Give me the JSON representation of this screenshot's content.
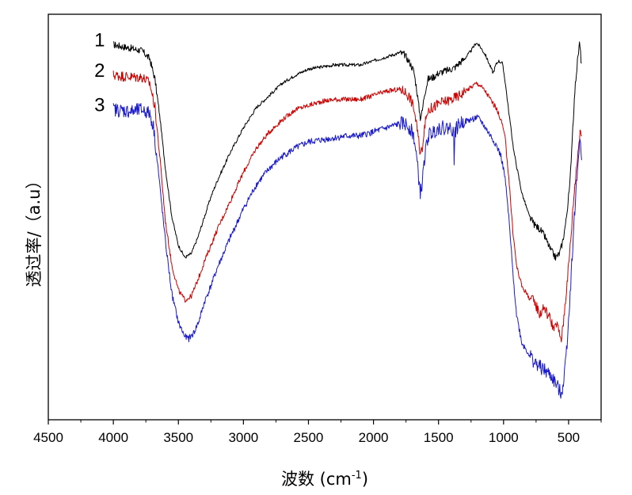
{
  "chart_data": {
    "type": "line",
    "title": "",
    "xlabel": "波数 (cm",
    "xlabel_sup": "-1",
    "xlabel_close": ")",
    "ylabel": "透过率/（a.u）",
    "xlim": [
      4500,
      250
    ],
    "ylim": [
      0,
      1
    ],
    "x_reversed": true,
    "x_ticks": [
      4500,
      4000,
      3500,
      3000,
      2500,
      2000,
      1500,
      1000,
      500
    ],
    "x_tick_labels": [
      "4500",
      "4000",
      "3500",
      "3000",
      "2500",
      "2000",
      "1500",
      "1000",
      "500"
    ],
    "grid": false,
    "legend": "none",
    "series": [
      {
        "name": "1",
        "color": "#000000",
        "noise": 0.004,
        "points": [
          [
            4000,
            0.925
          ],
          [
            3850,
            0.915
          ],
          [
            3780,
            0.91
          ],
          [
            3720,
            0.89
          ],
          [
            3680,
            0.84
          ],
          [
            3640,
            0.74
          ],
          [
            3600,
            0.62
          ],
          [
            3550,
            0.5
          ],
          [
            3500,
            0.43
          ],
          [
            3450,
            0.4
          ],
          [
            3400,
            0.41
          ],
          [
            3350,
            0.45
          ],
          [
            3300,
            0.5
          ],
          [
            3250,
            0.55
          ],
          [
            3200,
            0.59
          ],
          [
            3100,
            0.66
          ],
          [
            3000,
            0.72
          ],
          [
            2900,
            0.77
          ],
          [
            2800,
            0.8
          ],
          [
            2700,
            0.83
          ],
          [
            2600,
            0.85
          ],
          [
            2500,
            0.865
          ],
          [
            2400,
            0.87
          ],
          [
            2300,
            0.875
          ],
          [
            2200,
            0.875
          ],
          [
            2100,
            0.875
          ],
          [
            2000,
            0.885
          ],
          [
            1900,
            0.895
          ],
          [
            1800,
            0.905
          ],
          [
            1760,
            0.9
          ],
          [
            1720,
            0.88
          ],
          [
            1690,
            0.86
          ],
          [
            1670,
            0.82
          ],
          [
            1650,
            0.77
          ],
          [
            1640,
            0.745
          ],
          [
            1625,
            0.76
          ],
          [
            1610,
            0.8
          ],
          [
            1580,
            0.84
          ],
          [
            1540,
            0.845
          ],
          [
            1500,
            0.855
          ],
          [
            1450,
            0.86
          ],
          [
            1400,
            0.865
          ],
          [
            1370,
            0.87
          ],
          [
            1340,
            0.88
          ],
          [
            1300,
            0.89
          ],
          [
            1250,
            0.91
          ],
          [
            1210,
            0.93
          ],
          [
            1180,
            0.92
          ],
          [
            1140,
            0.9
          ],
          [
            1100,
            0.87
          ],
          [
            1080,
            0.855
          ],
          [
            1060,
            0.875
          ],
          [
            1040,
            0.885
          ],
          [
            1010,
            0.88
          ],
          [
            990,
            0.84
          ],
          [
            960,
            0.76
          ],
          [
            920,
            0.66
          ],
          [
            860,
            0.56
          ],
          [
            800,
            0.5
          ],
          [
            760,
            0.48
          ],
          [
            720,
            0.47
          ],
          [
            680,
            0.45
          ],
          [
            640,
            0.42
          ],
          [
            600,
            0.4
          ],
          [
            570,
            0.41
          ],
          [
            545,
            0.44
          ],
          [
            520,
            0.49
          ],
          [
            490,
            0.58
          ],
          [
            470,
            0.71
          ],
          [
            450,
            0.82
          ],
          [
            430,
            0.89
          ],
          [
            415,
            0.93
          ],
          [
            405,
            0.89
          ],
          [
            400,
            0.88
          ]
        ]
      },
      {
        "name": "2",
        "color": "#cc0000",
        "noise": 0.006,
        "points": [
          [
            4000,
            0.85
          ],
          [
            3850,
            0.845
          ],
          [
            3780,
            0.845
          ],
          [
            3720,
            0.83
          ],
          [
            3680,
            0.77
          ],
          [
            3640,
            0.64
          ],
          [
            3600,
            0.49
          ],
          [
            3550,
            0.38
          ],
          [
            3500,
            0.32
          ],
          [
            3450,
            0.295
          ],
          [
            3400,
            0.305
          ],
          [
            3350,
            0.345
          ],
          [
            3300,
            0.39
          ],
          [
            3250,
            0.43
          ],
          [
            3200,
            0.47
          ],
          [
            3100,
            0.54
          ],
          [
            3000,
            0.61
          ],
          [
            2900,
            0.67
          ],
          [
            2800,
            0.71
          ],
          [
            2700,
            0.74
          ],
          [
            2600,
            0.765
          ],
          [
            2500,
            0.775
          ],
          [
            2400,
            0.785
          ],
          [
            2300,
            0.79
          ],
          [
            2200,
            0.79
          ],
          [
            2100,
            0.79
          ],
          [
            2000,
            0.8
          ],
          [
            1900,
            0.81
          ],
          [
            1800,
            0.815
          ],
          [
            1760,
            0.81
          ],
          [
            1720,
            0.795
          ],
          [
            1690,
            0.77
          ],
          [
            1670,
            0.73
          ],
          [
            1650,
            0.68
          ],
          [
            1640,
            0.655
          ],
          [
            1625,
            0.67
          ],
          [
            1610,
            0.72
          ],
          [
            1580,
            0.765
          ],
          [
            1540,
            0.77
          ],
          [
            1500,
            0.78
          ],
          [
            1450,
            0.785
          ],
          [
            1400,
            0.79
          ],
          [
            1370,
            0.795
          ],
          [
            1340,
            0.8
          ],
          [
            1300,
            0.81
          ],
          [
            1250,
            0.82
          ],
          [
            1210,
            0.83
          ],
          [
            1180,
            0.825
          ],
          [
            1140,
            0.81
          ],
          [
            1100,
            0.79
          ],
          [
            1060,
            0.77
          ],
          [
            1020,
            0.74
          ],
          [
            990,
            0.7
          ],
          [
            960,
            0.6
          ],
          [
            930,
            0.47
          ],
          [
            900,
            0.38
          ],
          [
            860,
            0.33
          ],
          [
            800,
            0.3
          ],
          [
            760,
            0.29
          ],
          [
            720,
            0.26
          ],
          [
            690,
            0.28
          ],
          [
            670,
            0.265
          ],
          [
            640,
            0.25
          ],
          [
            610,
            0.22
          ],
          [
            590,
            0.24
          ],
          [
            570,
            0.21
          ],
          [
            555,
            0.2
          ],
          [
            540,
            0.24
          ],
          [
            520,
            0.31
          ],
          [
            500,
            0.38
          ],
          [
            480,
            0.46
          ],
          [
            460,
            0.55
          ],
          [
            440,
            0.62
          ],
          [
            425,
            0.67
          ],
          [
            410,
            0.72
          ],
          [
            400,
            0.7
          ]
        ]
      },
      {
        "name": "3",
        "color": "#1a1acc",
        "noise": 0.008,
        "points": [
          [
            4000,
            0.765
          ],
          [
            3850,
            0.76
          ],
          [
            3780,
            0.765
          ],
          [
            3720,
            0.755
          ],
          [
            3690,
            0.72
          ],
          [
            3650,
            0.6
          ],
          [
            3600,
            0.44
          ],
          [
            3550,
            0.31
          ],
          [
            3500,
            0.24
          ],
          [
            3450,
            0.205
          ],
          [
            3420,
            0.2
          ],
          [
            3380,
            0.215
          ],
          [
            3340,
            0.245
          ],
          [
            3300,
            0.29
          ],
          [
            3250,
            0.33
          ],
          [
            3200,
            0.375
          ],
          [
            3100,
            0.45
          ],
          [
            3000,
            0.52
          ],
          [
            2900,
            0.58
          ],
          [
            2800,
            0.62
          ],
          [
            2700,
            0.65
          ],
          [
            2600,
            0.67
          ],
          [
            2500,
            0.685
          ],
          [
            2400,
            0.69
          ],
          [
            2300,
            0.695
          ],
          [
            2200,
            0.7
          ],
          [
            2100,
            0.7
          ],
          [
            2000,
            0.71
          ],
          [
            1900,
            0.72
          ],
          [
            1800,
            0.73
          ],
          [
            1760,
            0.73
          ],
          [
            1720,
            0.72
          ],
          [
            1690,
            0.7
          ],
          [
            1670,
            0.65
          ],
          [
            1650,
            0.59
          ],
          [
            1640,
            0.56
          ],
          [
            1625,
            0.58
          ],
          [
            1610,
            0.64
          ],
          [
            1580,
            0.7
          ],
          [
            1540,
            0.71
          ],
          [
            1500,
            0.72
          ],
          [
            1450,
            0.72
          ],
          [
            1400,
            0.72
          ],
          [
            1385,
            0.71
          ],
          [
            1380,
            0.64
          ],
          [
            1375,
            0.71
          ],
          [
            1340,
            0.73
          ],
          [
            1300,
            0.735
          ],
          [
            1250,
            0.74
          ],
          [
            1210,
            0.745
          ],
          [
            1180,
            0.74
          ],
          [
            1140,
            0.72
          ],
          [
            1100,
            0.7
          ],
          [
            1060,
            0.68
          ],
          [
            1020,
            0.65
          ],
          [
            990,
            0.6
          ],
          [
            960,
            0.5
          ],
          [
            930,
            0.37
          ],
          [
            900,
            0.26
          ],
          [
            860,
            0.19
          ],
          [
            800,
            0.16
          ],
          [
            760,
            0.14
          ],
          [
            720,
            0.13
          ],
          [
            680,
            0.12
          ],
          [
            640,
            0.11
          ],
          [
            600,
            0.09
          ],
          [
            570,
            0.07
          ],
          [
            550,
            0.07
          ],
          [
            530,
            0.12
          ],
          [
            510,
            0.2
          ],
          [
            490,
            0.3
          ],
          [
            470,
            0.42
          ],
          [
            450,
            0.53
          ],
          [
            430,
            0.62
          ],
          [
            415,
            0.7
          ],
          [
            405,
            0.66
          ],
          [
            400,
            0.64
          ]
        ]
      }
    ],
    "annotations": [
      {
        "text": "1",
        "series": 0
      },
      {
        "text": "2",
        "series": 1
      },
      {
        "text": "3",
        "series": 2
      }
    ]
  }
}
